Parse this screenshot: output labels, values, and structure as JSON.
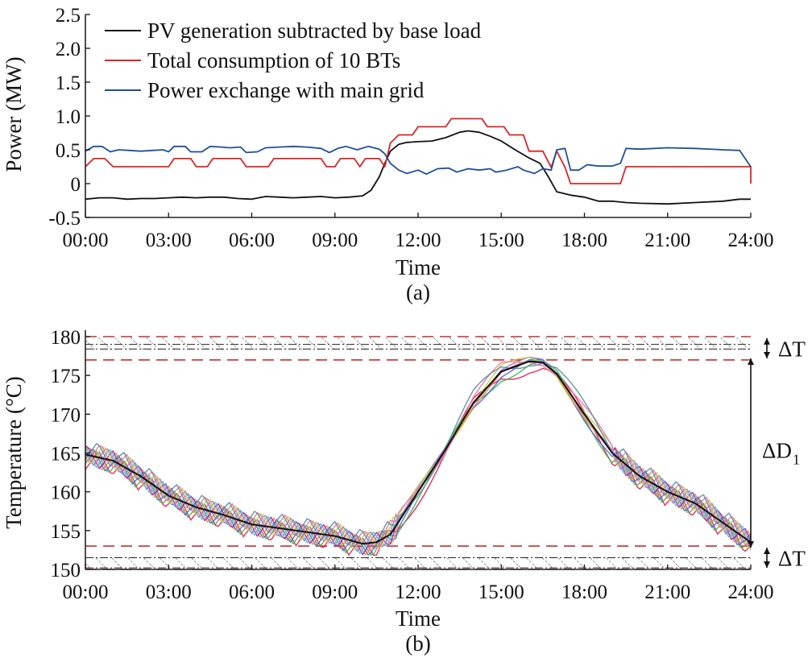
{
  "chart_data": [
    {
      "type": "line",
      "xlabel": "Time",
      "ylabel": "Power (MW)",
      "caption": "(a)",
      "xlim": [
        0,
        24
      ],
      "ylim": [
        -0.5,
        2.5
      ],
      "x_tick_labels": [
        "00:00",
        "03:00",
        "06:00",
        "09:00",
        "12:00",
        "15:00",
        "18:00",
        "21:00",
        "24:00"
      ],
      "y_tick_labels": [
        "-0.5",
        "0",
        "0.5",
        "1.0",
        "1.5",
        "2.0",
        "2.5"
      ],
      "legend_placement": "top-left",
      "series": [
        {
          "name": "PV generation subtracted by base load",
          "color": "#111111",
          "points": [
            [
              0.0,
              -0.23
            ],
            [
              0.5,
              -0.21
            ],
            [
              1.0,
              -0.21
            ],
            [
              1.5,
              -0.23
            ],
            [
              2.0,
              -0.22
            ],
            [
              2.5,
              -0.22
            ],
            [
              3.0,
              -0.21
            ],
            [
              3.5,
              -0.2
            ],
            [
              4.0,
              -0.21
            ],
            [
              4.5,
              -0.2
            ],
            [
              5.0,
              -0.2
            ],
            [
              5.5,
              -0.22
            ],
            [
              6.0,
              -0.23
            ],
            [
              6.5,
              -0.19
            ],
            [
              7.0,
              -0.2
            ],
            [
              7.5,
              -0.21
            ],
            [
              8.0,
              -0.2
            ],
            [
              8.5,
              -0.19
            ],
            [
              9.0,
              -0.21
            ],
            [
              9.5,
              -0.2
            ],
            [
              10.0,
              -0.18
            ],
            [
              10.3,
              -0.1
            ],
            [
              10.6,
              0.1
            ],
            [
              10.8,
              0.3
            ],
            [
              11.0,
              0.48
            ],
            [
              11.3,
              0.58
            ],
            [
              11.6,
              0.61
            ],
            [
              12.0,
              0.62
            ],
            [
              12.5,
              0.63
            ],
            [
              13.0,
              0.68
            ],
            [
              13.5,
              0.76
            ],
            [
              13.8,
              0.78
            ],
            [
              14.2,
              0.76
            ],
            [
              14.6,
              0.7
            ],
            [
              15.0,
              0.63
            ],
            [
              15.5,
              0.5
            ],
            [
              16.0,
              0.38
            ],
            [
              16.4,
              0.3
            ],
            [
              16.7,
              0.1
            ],
            [
              17.0,
              -0.12
            ],
            [
              17.5,
              -0.17
            ],
            [
              18.0,
              -0.2
            ],
            [
              18.5,
              -0.26
            ],
            [
              19.0,
              -0.26
            ],
            [
              19.5,
              -0.28
            ],
            [
              20.0,
              -0.29
            ],
            [
              21.0,
              -0.3
            ],
            [
              22.0,
              -0.28
            ],
            [
              23.0,
              -0.26
            ],
            [
              23.6,
              -0.23
            ],
            [
              24.0,
              -0.23
            ]
          ]
        },
        {
          "name": "Total consumption of 10 BTs",
          "color": "#d62728",
          "points": [
            [
              0.0,
              0.25
            ],
            [
              0.3,
              0.37
            ],
            [
              0.7,
              0.37
            ],
            [
              1.0,
              0.25
            ],
            [
              3.0,
              0.25
            ],
            [
              3.2,
              0.37
            ],
            [
              3.8,
              0.37
            ],
            [
              4.0,
              0.25
            ],
            [
              4.4,
              0.25
            ],
            [
              4.6,
              0.37
            ],
            [
              5.6,
              0.37
            ],
            [
              5.8,
              0.25
            ],
            [
              6.6,
              0.25
            ],
            [
              6.8,
              0.37
            ],
            [
              8.5,
              0.37
            ],
            [
              8.7,
              0.25
            ],
            [
              9.0,
              0.25
            ],
            [
              9.2,
              0.37
            ],
            [
              9.7,
              0.37
            ],
            [
              9.9,
              0.25
            ],
            [
              10.1,
              0.37
            ],
            [
              10.6,
              0.37
            ],
            [
              10.8,
              0.25
            ],
            [
              11.0,
              0.6
            ],
            [
              11.3,
              0.72
            ],
            [
              11.8,
              0.72
            ],
            [
              12.0,
              0.84
            ],
            [
              13.0,
              0.84
            ],
            [
              13.2,
              0.96
            ],
            [
              14.3,
              0.96
            ],
            [
              14.5,
              0.84
            ],
            [
              15.1,
              0.84
            ],
            [
              15.3,
              0.72
            ],
            [
              15.8,
              0.72
            ],
            [
              16.0,
              0.48
            ],
            [
              16.5,
              0.48
            ],
            [
              16.8,
              0.24
            ],
            [
              17.0,
              0.48
            ],
            [
              17.3,
              0.24
            ],
            [
              17.5,
              0.0
            ],
            [
              19.3,
              0.0
            ],
            [
              19.5,
              0.25
            ],
            [
              24.0,
              0.25
            ],
            [
              24.0,
              0.0
            ]
          ]
        },
        {
          "name": "Power exchange with main grid",
          "color": "#1f4e9c",
          "points": [
            [
              0.0,
              0.48
            ],
            [
              0.3,
              0.55
            ],
            [
              0.6,
              0.55
            ],
            [
              0.9,
              0.47
            ],
            [
              1.2,
              0.5
            ],
            [
              1.6,
              0.49
            ],
            [
              2.0,
              0.48
            ],
            [
              2.4,
              0.49
            ],
            [
              2.8,
              0.5
            ],
            [
              3.0,
              0.47
            ],
            [
              3.2,
              0.55
            ],
            [
              3.6,
              0.55
            ],
            [
              3.8,
              0.47
            ],
            [
              4.2,
              0.47
            ],
            [
              4.5,
              0.55
            ],
            [
              4.9,
              0.54
            ],
            [
              5.2,
              0.53
            ],
            [
              5.6,
              0.54
            ],
            [
              5.8,
              0.46
            ],
            [
              6.2,
              0.47
            ],
            [
              6.5,
              0.53
            ],
            [
              7.0,
              0.54
            ],
            [
              7.5,
              0.55
            ],
            [
              8.0,
              0.54
            ],
            [
              8.5,
              0.52
            ],
            [
              8.8,
              0.46
            ],
            [
              9.1,
              0.52
            ],
            [
              9.4,
              0.55
            ],
            [
              9.8,
              0.5
            ],
            [
              10.2,
              0.55
            ],
            [
              10.6,
              0.51
            ],
            [
              10.8,
              0.44
            ],
            [
              11.0,
              0.3
            ],
            [
              11.3,
              0.2
            ],
            [
              11.6,
              0.15
            ],
            [
              12.0,
              0.2
            ],
            [
              12.3,
              0.14
            ],
            [
              12.7,
              0.22
            ],
            [
              13.1,
              0.23
            ],
            [
              13.4,
              0.17
            ],
            [
              13.8,
              0.22
            ],
            [
              14.2,
              0.2
            ],
            [
              14.6,
              0.22
            ],
            [
              14.8,
              0.17
            ],
            [
              15.2,
              0.2
            ],
            [
              15.6,
              0.25
            ],
            [
              15.8,
              0.2
            ],
            [
              16.2,
              0.15
            ],
            [
              16.5,
              0.22
            ],
            [
              16.8,
              0.2
            ],
            [
              17.0,
              0.5
            ],
            [
              17.3,
              0.52
            ],
            [
              17.5,
              0.2
            ],
            [
              17.8,
              0.2
            ],
            [
              18.1,
              0.28
            ],
            [
              18.5,
              0.26
            ],
            [
              19.0,
              0.26
            ],
            [
              19.3,
              0.3
            ],
            [
              19.5,
              0.52
            ],
            [
              20.0,
              0.51
            ],
            [
              21.0,
              0.53
            ],
            [
              22.0,
              0.52
            ],
            [
              23.0,
              0.5
            ],
            [
              23.6,
              0.49
            ],
            [
              24.0,
              0.25
            ]
          ]
        }
      ]
    },
    {
      "type": "line",
      "xlabel": "Time",
      "ylabel": "Temperature (°C)",
      "caption": "(b)",
      "xlim": [
        0,
        24
      ],
      "ylim": [
        150,
        180
      ],
      "x_tick_labels": [
        "00:00",
        "03:00",
        "06:00",
        "09:00",
        "12:00",
        "15:00",
        "18:00",
        "21:00",
        "24:00"
      ],
      "y_tick_labels": [
        "150",
        "155",
        "160",
        "165",
        "170",
        "175",
        "180"
      ],
      "annotations": [
        "ΔT",
        "ΔD",
        "1",
        "ΔT"
      ],
      "bounds": {
        "upper": [
          177,
          180
        ],
        "lower": [
          150,
          153
        ]
      },
      "average_profile": {
        "color": "#111111",
        "points": [
          [
            0,
            164.8
          ],
          [
            1,
            164
          ],
          [
            2,
            162
          ],
          [
            3,
            159.5
          ],
          [
            4,
            158
          ],
          [
            5,
            157
          ],
          [
            6,
            155.8
          ],
          [
            7,
            155.3
          ],
          [
            8,
            154.8
          ],
          [
            9,
            154.3
          ],
          [
            10,
            153.3
          ],
          [
            10.5,
            153.5
          ],
          [
            11,
            154.5
          ],
          [
            12,
            160
          ],
          [
            13,
            165.5
          ],
          [
            14,
            171.5
          ],
          [
            15,
            175.5
          ],
          [
            16,
            176.8
          ],
          [
            16.5,
            176.7
          ],
          [
            17,
            175.2
          ],
          [
            18,
            170
          ],
          [
            19,
            165
          ],
          [
            20,
            162
          ],
          [
            21,
            160
          ],
          [
            22,
            158.5
          ],
          [
            23,
            156
          ],
          [
            24,
            153.5
          ]
        ]
      },
      "bt_colors": [
        "#e6194b",
        "#3cb44b",
        "#4363d8",
        "#f58231",
        "#911eb4",
        "#46c0c8",
        "#a06ec8",
        "#bcd33c",
        "#f06ea0",
        "#5a8a9a"
      ]
    }
  ]
}
